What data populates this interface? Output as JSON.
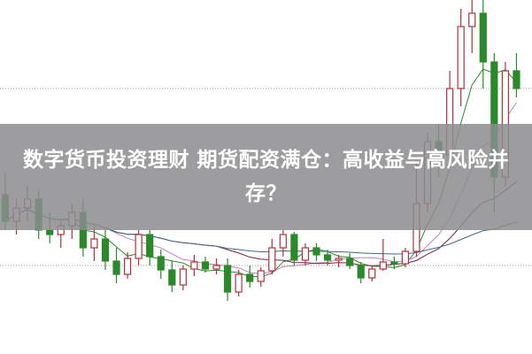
{
  "headline": "数字货币投资理财 期货配资满仓：高收益与高风险并存？",
  "colors": {
    "up": "#b0323a",
    "down": "#2a8a2a",
    "band": "#8c8c8f",
    "ma5": "#2a8a2a",
    "ma10": "#c080c0",
    "ma20": "#7a2040",
    "ma60": "#3a6a8a"
  },
  "background_chart": {
    "type": "candlestick",
    "grid_levels": [
      100,
      300
    ],
    "candles": [
      [
        180,
        205,
        140,
        150
      ],
      [
        150,
        175,
        135,
        165
      ],
      [
        165,
        190,
        150,
        175
      ],
      [
        175,
        185,
        130,
        140
      ],
      [
        140,
        160,
        125,
        135
      ],
      [
        135,
        150,
        120,
        145
      ],
      [
        145,
        170,
        130,
        160
      ],
      [
        160,
        175,
        110,
        120
      ],
      [
        120,
        145,
        105,
        130
      ],
      [
        130,
        140,
        95,
        105
      ],
      [
        105,
        120,
        80,
        90
      ],
      [
        90,
        115,
        85,
        108
      ],
      [
        108,
        140,
        100,
        135
      ],
      [
        135,
        140,
        100,
        110
      ],
      [
        110,
        118,
        85,
        95
      ],
      [
        95,
        105,
        70,
        78
      ],
      [
        78,
        100,
        72,
        96
      ],
      [
        96,
        112,
        88,
        104
      ],
      [
        104,
        110,
        92,
        96
      ],
      [
        96,
        108,
        90,
        100
      ],
      [
        100,
        108,
        60,
        70
      ],
      [
        70,
        95,
        65,
        90
      ],
      [
        90,
        100,
        75,
        82
      ],
      [
        82,
        98,
        76,
        94
      ],
      [
        94,
        130,
        90,
        120
      ],
      [
        120,
        140,
        110,
        135
      ],
      [
        135,
        138,
        100,
        106
      ],
      [
        106,
        125,
        100,
        120
      ],
      [
        120,
        125,
        105,
        112
      ],
      [
        112,
        118,
        100,
        106
      ],
      [
        106,
        112,
        98,
        108
      ],
      [
        108,
        114,
        96,
        100
      ],
      [
        100,
        104,
        80,
        86
      ],
      [
        86,
        100,
        82,
        96
      ],
      [
        96,
        130,
        94,
        104
      ],
      [
        104,
        110,
        96,
        102
      ],
      [
        102,
        120,
        98,
        116
      ],
      [
        116,
        220,
        110,
        170
      ],
      [
        170,
        250,
        160,
        240
      ],
      [
        240,
        260,
        200,
        225
      ],
      [
        225,
        320,
        215,
        300
      ],
      [
        300,
        390,
        280,
        370
      ],
      [
        370,
        400,
        340,
        385
      ],
      [
        385,
        400,
        300,
        330
      ],
      [
        330,
        340,
        160,
        200
      ],
      [
        200,
        330,
        190,
        320
      ],
      [
        320,
        340,
        290,
        300
      ]
    ]
  }
}
